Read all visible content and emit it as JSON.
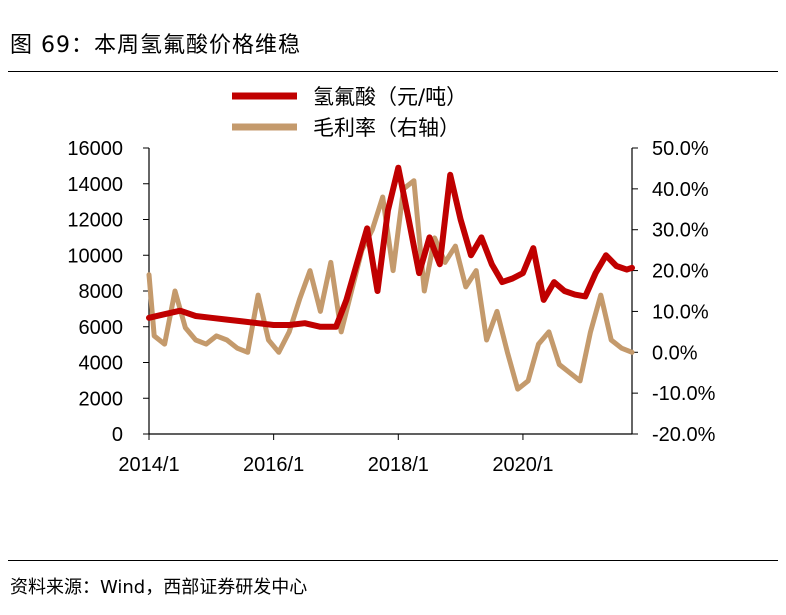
{
  "figure": {
    "title": "图 69：本周氢氟酸价格维稳",
    "source": "资料来源：Wind，西部证券研发中心"
  },
  "colors": {
    "series_red": "#C00000",
    "series_tan": "#C49A6C"
  },
  "chart_data": {
    "type": "line",
    "title": "",
    "xlabel": "",
    "ylabel": "",
    "x_ticks": [
      "2014/1",
      "2016/1",
      "2018/1",
      "2020/1"
    ],
    "x_range": [
      "2014/1",
      "2021/10"
    ],
    "y_left": {
      "range": [
        0,
        16000
      ],
      "ticks": [
        "0",
        "2000",
        "4000",
        "6000",
        "8000",
        "10000",
        "12000",
        "14000",
        "16000"
      ]
    },
    "y_right": {
      "range": [
        -20,
        50
      ],
      "ticks": [
        "-20.0%",
        "-10.0%",
        "0.0%",
        "10.0%",
        "20.0%",
        "30.0%",
        "40.0%",
        "50.0%"
      ]
    },
    "legend_position": "top-center",
    "grid": false,
    "series": [
      {
        "name": "氢氟酸（元/吨）",
        "axis": "left",
        "x": [
          "2014/1",
          "2014/4",
          "2014/7",
          "2014/10",
          "2015/1",
          "2015/4",
          "2015/7",
          "2015/10",
          "2016/1",
          "2016/4",
          "2016/7",
          "2016/10",
          "2017/1",
          "2017/3",
          "2017/5",
          "2017/7",
          "2017/9",
          "2017/11",
          "2018/1",
          "2018/3",
          "2018/5",
          "2018/7",
          "2018/9",
          "2018/11",
          "2019/1",
          "2019/3",
          "2019/5",
          "2019/7",
          "2019/9",
          "2019/11",
          "2020/1",
          "2020/3",
          "2020/5",
          "2020/7",
          "2020/9",
          "2020/11",
          "2021/1",
          "2021/3",
          "2021/5",
          "2021/7",
          "2021/9",
          "2021/10"
        ],
        "values": [
          6500,
          6700,
          6900,
          6600,
          6500,
          6400,
          6300,
          6200,
          6100,
          6100,
          6200,
          6000,
          6000,
          7500,
          9500,
          11500,
          8000,
          12500,
          14900,
          12000,
          9000,
          11000,
          9500,
          14500,
          12000,
          10000,
          11000,
          9500,
          8500,
          8700,
          9000,
          10400,
          7500,
          8500,
          8000,
          7800,
          7700,
          9000,
          10000,
          9400,
          9200,
          9300
        ]
      },
      {
        "name": "毛利率（右轴）",
        "axis": "right",
        "x": [
          "2014/1",
          "2014/2",
          "2014/4",
          "2014/6",
          "2014/8",
          "2014/10",
          "2014/12",
          "2015/2",
          "2015/4",
          "2015/6",
          "2015/8",
          "2015/10",
          "2015/12",
          "2016/2",
          "2016/4",
          "2016/6",
          "2016/8",
          "2016/10",
          "2016/12",
          "2017/2",
          "2017/4",
          "2017/6",
          "2017/8",
          "2017/10",
          "2017/12",
          "2018/2",
          "2018/4",
          "2018/6",
          "2018/8",
          "2018/10",
          "2018/12",
          "2019/2",
          "2019/4",
          "2019/6",
          "2019/8",
          "2019/10",
          "2019/12",
          "2020/2",
          "2020/4",
          "2020/6",
          "2020/8",
          "2020/10",
          "2020/12",
          "2021/2",
          "2021/4",
          "2021/6",
          "2021/8",
          "2021/10"
        ],
        "values": [
          19,
          4,
          2,
          15,
          6,
          3,
          2,
          4,
          3,
          1,
          0,
          14,
          3,
          0,
          5,
          13,
          20,
          10,
          22,
          5,
          15,
          25,
          30,
          38,
          20,
          40,
          42,
          15,
          28,
          22,
          26,
          16,
          20,
          3,
          10,
          0,
          -9,
          -7,
          2,
          5,
          -3,
          -5,
          -7,
          5,
          14,
          3,
          1,
          0
        ]
      }
    ]
  }
}
